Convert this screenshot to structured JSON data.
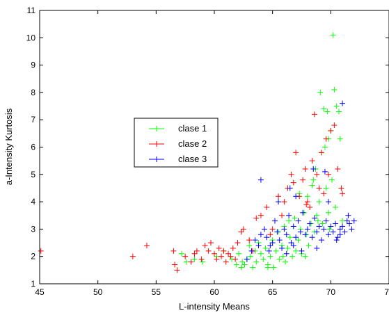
{
  "chart_data": {
    "type": "scatter",
    "xlabel": "L-intensity Means",
    "ylabel": "a-Intensity Kurtosis",
    "xlim": [
      45,
      75
    ],
    "ylim": [
      1,
      11
    ],
    "x_ticks": [
      "45",
      "50",
      "55",
      "60",
      "65",
      "70",
      "75"
    ],
    "y_ticks": [
      "1",
      "2",
      "3",
      "4",
      "5",
      "6",
      "7",
      "8",
      "9",
      "10",
      "11"
    ],
    "legend": {
      "placement": "center-left",
      "entries": [
        "clase 1",
        "clase 2",
        "clase 3"
      ]
    },
    "series": [
      {
        "name": "clase 1",
        "color": "#00ff00",
        "points": [
          [
            57.2,
            2.1
          ],
          [
            57.6,
            1.8
          ],
          [
            58.3,
            1.9
          ],
          [
            59.0,
            1.8
          ],
          [
            60.2,
            2.0
          ],
          [
            60.8,
            2.2
          ],
          [
            61.5,
            1.9
          ],
          [
            61.9,
            1.7
          ],
          [
            62.1,
            2.1
          ],
          [
            62.3,
            1.6
          ],
          [
            62.6,
            1.7
          ],
          [
            62.8,
            1.9
          ],
          [
            63.1,
            2.0
          ],
          [
            63.3,
            1.6
          ],
          [
            63.5,
            2.2
          ],
          [
            63.6,
            1.8
          ],
          [
            63.8,
            2.5
          ],
          [
            64.0,
            2.1
          ],
          [
            64.2,
            1.9
          ],
          [
            64.4,
            2.3
          ],
          [
            64.6,
            1.7
          ],
          [
            64.8,
            2.0
          ],
          [
            65.0,
            2.6
          ],
          [
            65.1,
            1.6
          ],
          [
            65.3,
            2.2
          ],
          [
            65.5,
            2.9
          ],
          [
            65.6,
            1.9
          ],
          [
            65.8,
            2.4
          ],
          [
            66.0,
            3.1
          ],
          [
            66.1,
            1.8
          ],
          [
            66.3,
            2.3
          ],
          [
            66.5,
            2.7
          ],
          [
            66.7,
            2.0
          ],
          [
            66.9,
            3.4
          ],
          [
            67.0,
            2.2
          ],
          [
            67.2,
            2.6
          ],
          [
            67.4,
            3.0
          ],
          [
            67.5,
            2.1
          ],
          [
            67.7,
            3.6
          ],
          [
            67.9,
            2.8
          ],
          [
            68.0,
            4.2
          ],
          [
            68.1,
            2.4
          ],
          [
            68.3,
            3.2
          ],
          [
            68.4,
            4.6
          ],
          [
            68.6,
            2.9
          ],
          [
            68.7,
            5.2
          ],
          [
            68.8,
            3.5
          ],
          [
            69.0,
            4.0
          ],
          [
            69.1,
            8.0
          ],
          [
            69.2,
            5.8
          ],
          [
            69.3,
            3.2
          ],
          [
            69.4,
            7.4
          ],
          [
            69.5,
            6.0
          ],
          [
            69.6,
            4.5
          ],
          [
            69.7,
            7.3
          ],
          [
            69.8,
            6.3
          ],
          [
            69.9,
            3.0
          ],
          [
            70.0,
            6.6
          ],
          [
            70.1,
            4.8
          ],
          [
            70.2,
            10.1
          ],
          [
            70.3,
            8.1
          ],
          [
            70.4,
            3.8
          ],
          [
            70.5,
            7.5
          ],
          [
            70.7,
            7.3
          ],
          [
            70.8,
            6.3
          ],
          [
            71.0,
            3.3
          ],
          [
            64.6,
            1.6
          ],
          [
            63.0,
            2.4
          ],
          [
            62.4,
            1.8
          ],
          [
            65.9,
            2.0
          ],
          [
            66.4,
            3.3
          ],
          [
            67.8,
            2.0
          ],
          [
            68.9,
            3.3
          ],
          [
            69.8,
            3.6
          ],
          [
            68.5,
            4.8
          ],
          [
            67.3,
            4.3
          ]
        ]
      },
      {
        "name": "clase 2",
        "color": "#ff0000",
        "points": [
          [
            45.1,
            2.2
          ],
          [
            53.0,
            2.0
          ],
          [
            54.2,
            2.4
          ],
          [
            56.5,
            2.2
          ],
          [
            56.6,
            1.7
          ],
          [
            56.8,
            1.5
          ],
          [
            57.5,
            2.0
          ],
          [
            58.0,
            1.8
          ],
          [
            58.3,
            2.1
          ],
          [
            58.5,
            2.2
          ],
          [
            58.9,
            1.9
          ],
          [
            59.2,
            2.4
          ],
          [
            59.5,
            2.2
          ],
          [
            59.7,
            2.5
          ],
          [
            60.0,
            2.1
          ],
          [
            60.2,
            1.9
          ],
          [
            60.4,
            2.3
          ],
          [
            60.6,
            2.0
          ],
          [
            60.8,
            2.2
          ],
          [
            61.0,
            1.8
          ],
          [
            61.2,
            2.1
          ],
          [
            61.4,
            2.0
          ],
          [
            61.6,
            2.3
          ],
          [
            61.8,
            1.9
          ],
          [
            62.0,
            2.5
          ],
          [
            62.3,
            2.9
          ],
          [
            62.5,
            3.0
          ],
          [
            63.0,
            2.6
          ],
          [
            63.6,
            3.4
          ],
          [
            64.0,
            3.5
          ],
          [
            64.5,
            3.8
          ],
          [
            65.0,
            3.0
          ],
          [
            65.5,
            4.2
          ],
          [
            65.8,
            3.5
          ],
          [
            66.0,
            4.0
          ],
          [
            66.3,
            4.5
          ],
          [
            66.6,
            5.0
          ],
          [
            67.0,
            5.8
          ],
          [
            67.3,
            4.2
          ],
          [
            67.6,
            4.8
          ],
          [
            67.8,
            5.2
          ],
          [
            68.0,
            4.0
          ],
          [
            68.2,
            3.8
          ],
          [
            68.4,
            5.5
          ],
          [
            68.6,
            7.2
          ],
          [
            68.8,
            5.0
          ],
          [
            69.0,
            4.5
          ],
          [
            69.2,
            5.8
          ],
          [
            69.4,
            4.3
          ],
          [
            69.6,
            6.3
          ],
          [
            69.8,
            5.0
          ],
          [
            70.0,
            6.6
          ],
          [
            70.3,
            6.8
          ],
          [
            70.6,
            5.2
          ],
          [
            70.9,
            4.5
          ],
          [
            71.0,
            4.3
          ],
          [
            66.8,
            4.7
          ],
          [
            67.9,
            3.9
          ],
          [
            64.8,
            2.8
          ],
          [
            63.3,
            2.2
          ]
        ]
      },
      {
        "name": "clase 3",
        "color": "#0000ff",
        "points": [
          [
            62.8,
            1.9
          ],
          [
            63.2,
            2.2
          ],
          [
            63.5,
            2.6
          ],
          [
            63.8,
            2.4
          ],
          [
            64.0,
            2.8
          ],
          [
            64.3,
            3.0
          ],
          [
            64.5,
            2.7
          ],
          [
            64.7,
            2.2
          ],
          [
            65.0,
            2.5
          ],
          [
            65.2,
            3.3
          ],
          [
            65.4,
            2.9
          ],
          [
            65.6,
            2.6
          ],
          [
            65.8,
            2.3
          ],
          [
            66.0,
            3.0
          ],
          [
            66.2,
            2.8
          ],
          [
            66.4,
            3.5
          ],
          [
            66.6,
            2.5
          ],
          [
            66.8,
            3.1
          ],
          [
            67.0,
            2.7
          ],
          [
            67.2,
            3.3
          ],
          [
            67.4,
            2.9
          ],
          [
            67.6,
            3.6
          ],
          [
            67.8,
            2.8
          ],
          [
            68.0,
            3.0
          ],
          [
            68.2,
            3.2
          ],
          [
            68.4,
            2.7
          ],
          [
            68.6,
            3.4
          ],
          [
            68.8,
            2.9
          ],
          [
            69.0,
            3.1
          ],
          [
            69.2,
            2.6
          ],
          [
            69.4,
            3.0
          ],
          [
            69.6,
            3.3
          ],
          [
            69.8,
            2.8
          ],
          [
            70.0,
            3.1
          ],
          [
            70.2,
            2.9
          ],
          [
            70.4,
            3.2
          ],
          [
            70.6,
            2.7
          ],
          [
            70.8,
            3.0
          ],
          [
            71.0,
            3.1
          ],
          [
            71.2,
            2.9
          ],
          [
            71.4,
            3.3
          ],
          [
            71.6,
            3.2
          ],
          [
            71.8,
            3.0
          ],
          [
            72.0,
            3.3
          ],
          [
            64.0,
            4.8
          ],
          [
            66.5,
            4.5
          ],
          [
            68.5,
            5.2
          ],
          [
            69.5,
            5.1
          ],
          [
            71.0,
            7.6
          ],
          [
            66.2,
            2.1
          ],
          [
            67.5,
            2.2
          ],
          [
            68.8,
            2.3
          ],
          [
            70.5,
            2.6
          ],
          [
            71.5,
            3.5
          ],
          [
            65.5,
            4.0
          ],
          [
            67.0,
            4.2
          ],
          [
            69.8,
            4.0
          ],
          [
            70.8,
            2.8
          ],
          [
            66.8,
            2.4
          ],
          [
            64.8,
            2.4
          ]
        ]
      }
    ]
  }
}
